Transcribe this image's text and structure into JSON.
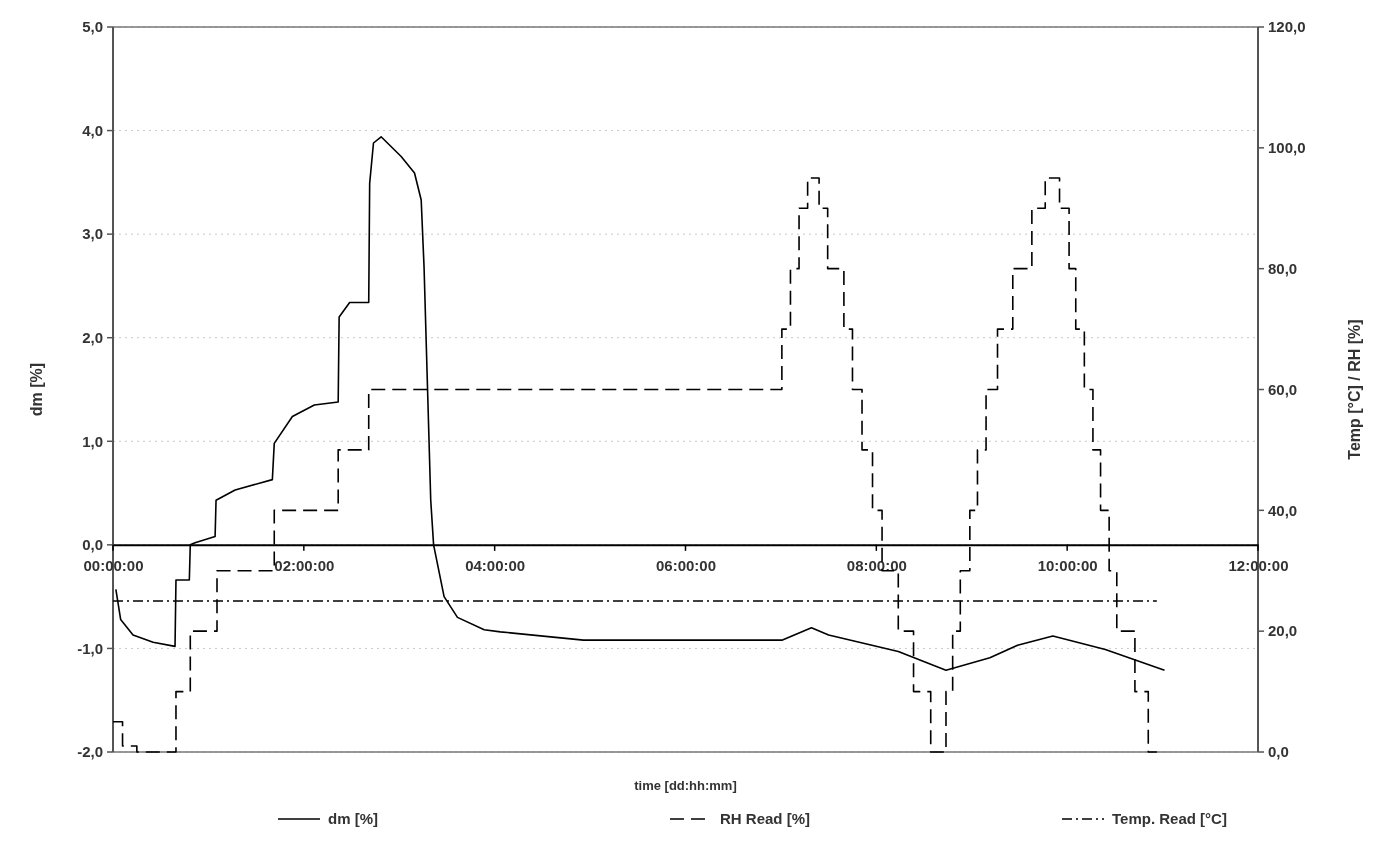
{
  "chart_data": {
    "type": "line",
    "xlabel": "time [dd:hh:mm]",
    "ylabel": "dm [%]",
    "y2label": "Temp [°C] / RH [%]",
    "xlim": [
      0,
      12
    ],
    "xticks": [
      {
        "value": 0,
        "label": "00:00:00"
      },
      {
        "value": 2,
        "label": "02:00:00"
      },
      {
        "value": 4,
        "label": "04:00:00"
      },
      {
        "value": 6,
        "label": "06:00:00"
      },
      {
        "value": 8,
        "label": "08:00:00"
      },
      {
        "value": 10,
        "label": "10:00:00"
      },
      {
        "value": 12,
        "label": "12:00:00"
      }
    ],
    "ylim": [
      -2,
      5
    ],
    "yticks": [
      {
        "value": -2,
        "label": "-2,0"
      },
      {
        "value": -1,
        "label": "-1,0"
      },
      {
        "value": 0,
        "label": "0,0"
      },
      {
        "value": 1,
        "label": "1,0"
      },
      {
        "value": 2,
        "label": "2,0"
      },
      {
        "value": 3,
        "label": "3,0"
      },
      {
        "value": 4,
        "label": "4,0"
      },
      {
        "value": 5,
        "label": "5,0"
      }
    ],
    "y2lim": [
      0,
      120
    ],
    "y2ticks": [
      {
        "value": 0,
        "label": "0,0"
      },
      {
        "value": 20,
        "label": "20,0"
      },
      {
        "value": 40,
        "label": "40,0"
      },
      {
        "value": 60,
        "label": "60,0"
      },
      {
        "value": 80,
        "label": "80,0"
      },
      {
        "value": 100,
        "label": "100,0"
      },
      {
        "value": 120,
        "label": "120,0"
      }
    ],
    "grid": "y",
    "legend": "bottom",
    "series": [
      {
        "name": "dm [%]",
        "color": "#000000",
        "line_style": "solid",
        "x": [
          0.03,
          0.08,
          0.21,
          0.42,
          0.65,
          0.66,
          0.8,
          0.81,
          0.86,
          1.07,
          1.08,
          1.28,
          1.67,
          1.69,
          1.88,
          2.11,
          2.36,
          2.37,
          2.48,
          2.68,
          2.69,
          2.73,
          2.81,
          3.02,
          3.16,
          3.23,
          3.26,
          3.33,
          3.36,
          3.47,
          3.61,
          3.89,
          4.06,
          4.93,
          7.01,
          7.32,
          7.5,
          8.23,
          8.73,
          9.19,
          9.48,
          9.85,
          10.4,
          11.02
        ],
        "values": [
          -0.43,
          -0.72,
          -0.87,
          -0.94,
          -0.98,
          -0.34,
          -0.34,
          0,
          0.02,
          0.08,
          0.43,
          0.53,
          0.63,
          0.98,
          1.24,
          1.35,
          1.38,
          2.2,
          2.34,
          2.34,
          3.49,
          3.88,
          3.94,
          3.75,
          3.59,
          3.33,
          2.68,
          0.43,
          0,
          -0.5,
          -0.7,
          -0.82,
          -0.84,
          -0.92,
          -0.92,
          -0.8,
          -0.87,
          -1.03,
          -1.21,
          -1.09,
          -0.97,
          -0.88,
          -1.01,
          -1.21
        ]
      },
      {
        "name": "RH Read [%]",
        "type": "step",
        "axis": "y2",
        "color": "#000000",
        "line_style": "dashed",
        "x": [
          0,
          0.1,
          0.25,
          0.66,
          0.81,
          1.09,
          1.69,
          2.36,
          2.68,
          7.01,
          7.1,
          7.19,
          7.28,
          7.4,
          7.49,
          7.66,
          7.75,
          7.85,
          7.96,
          8.06,
          8.23,
          8.39,
          8.57,
          8.73,
          8.8,
          8.88,
          8.98,
          9.06,
          9.15,
          9.27,
          9.43,
          9.63,
          9.77,
          9.92,
          10.02,
          10.09,
          10.18,
          10.27,
          10.35,
          10.44,
          10.52,
          10.71,
          10.85,
          10.94
        ],
        "values": [
          5,
          1,
          0,
          10,
          20,
          30,
          40,
          50,
          60,
          70,
          80,
          90,
          95,
          90,
          80,
          70,
          60,
          50,
          40,
          30,
          20,
          10,
          0,
          10,
          20,
          30,
          40,
          50,
          60,
          70,
          80,
          90,
          95,
          90,
          80,
          70,
          60,
          50,
          40,
          30,
          20,
          10,
          0,
          0
        ]
      },
      {
        "name": "Temp. Read [°C]",
        "type": "line",
        "axis": "y2",
        "color": "#000000",
        "line_style": "dashdot",
        "x": [
          0,
          10.94
        ],
        "values": [
          25,
          25
        ]
      }
    ]
  }
}
